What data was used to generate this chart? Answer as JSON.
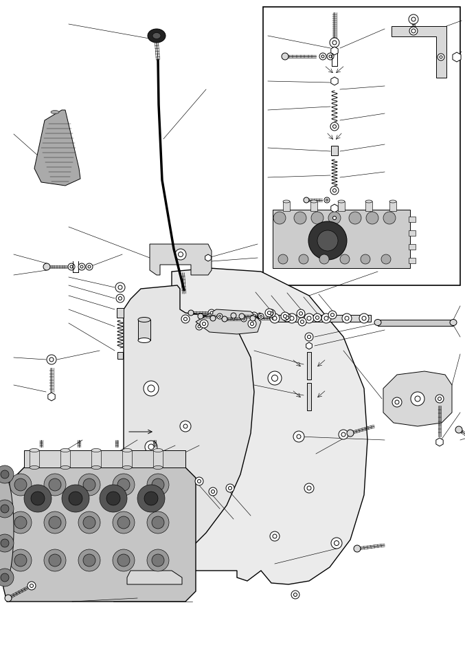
{
  "bg_color": "#ffffff",
  "line_color": "#000000",
  "fig_width": 6.77,
  "fig_height": 9.6,
  "dpi": 100,
  "lw": 0.7,
  "tlw": 0.45
}
